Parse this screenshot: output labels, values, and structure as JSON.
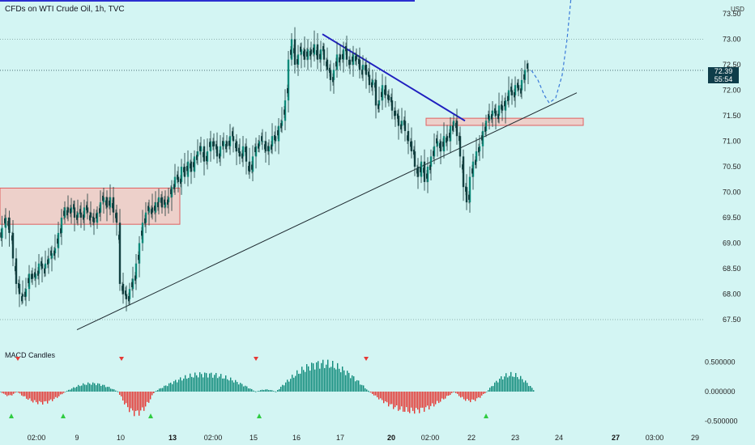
{
  "header": {
    "title": "CFDs on WTI Crude Oil, 1h, TVC",
    "currency": "USD"
  },
  "price_tag": {
    "price": "72.39",
    "countdown": "55:54"
  },
  "indicator": {
    "title": "MACD Candles"
  },
  "colors": {
    "bg": "#d3f5f3",
    "up": "#0e8a7a",
    "down": "#e53935",
    "trend": "#1f1fbf",
    "zone_fill": "#f1c9c2",
    "zone_border": "#e06060"
  },
  "chart_data": [
    {
      "type": "line",
      "title": "CFDs on WTI Crude Oil, 1h, TVC",
      "y_ticks": [
        "73.50",
        "73.00",
        "72.50",
        "72.00",
        "71.50",
        "71.00",
        "70.50",
        "70.00",
        "69.50",
        "69.00",
        "68.50",
        "68.00",
        "67.50"
      ],
      "x_ticks": [
        "02:00",
        "9",
        "10",
        "13",
        "02:00",
        "15",
        "16",
        "17",
        "20",
        "02:00",
        "22",
        "23",
        "24",
        "27",
        "03:00",
        "29"
      ],
      "ylim": [
        67.5,
        73.5
      ],
      "price_path": [
        [
          0,
          69.1
        ],
        [
          5,
          69.3
        ],
        [
          9,
          69.5
        ],
        [
          14,
          69.2
        ],
        [
          18,
          68.7
        ],
        [
          22,
          68.2
        ],
        [
          26,
          68.0
        ],
        [
          30,
          67.95
        ],
        [
          34,
          68.1
        ],
        [
          38,
          68.4
        ],
        [
          42,
          68.3
        ],
        [
          46,
          68.4
        ],
        [
          50,
          68.6
        ],
        [
          54,
          68.5
        ],
        [
          58,
          68.6
        ],
        [
          62,
          68.7
        ],
        [
          66,
          68.8
        ],
        [
          70,
          68.9
        ],
        [
          74,
          69.2
        ],
        [
          78,
          69.5
        ],
        [
          82,
          69.7
        ],
        [
          86,
          69.6
        ],
        [
          90,
          69.7
        ],
        [
          94,
          69.5
        ],
        [
          98,
          69.6
        ],
        [
          102,
          69.5
        ],
        [
          106,
          69.7
        ],
        [
          110,
          69.6
        ],
        [
          114,
          69.5
        ],
        [
          118,
          69.4
        ],
        [
          122,
          69.6
        ],
        [
          126,
          69.8
        ],
        [
          130,
          69.9
        ],
        [
          134,
          69.7
        ],
        [
          138,
          69.9
        ],
        [
          142,
          69.6
        ],
        [
          146,
          69.4
        ],
        [
          150,
          68.2
        ],
        [
          154,
          68.0
        ],
        [
          158,
          67.9
        ],
        [
          162,
          68.1
        ],
        [
          166,
          68.3
        ],
        [
          170,
          68.6
        ],
        [
          174,
          69.0
        ],
        [
          178,
          69.4
        ],
        [
          182,
          69.6
        ],
        [
          186,
          69.7
        ],
        [
          190,
          69.6
        ],
        [
          194,
          69.8
        ],
        [
          198,
          69.9
        ],
        [
          202,
          69.7
        ],
        [
          206,
          69.8
        ],
        [
          210,
          69.9
        ],
        [
          214,
          70.1
        ],
        [
          218,
          70.3
        ],
        [
          222,
          70.2
        ],
        [
          226,
          70.5
        ],
        [
          230,
          70.3
        ],
        [
          234,
          70.6
        ],
        [
          238,
          70.4
        ],
        [
          242,
          70.7
        ],
        [
          246,
          70.8
        ],
        [
          250,
          70.9
        ],
        [
          254,
          70.6
        ],
        [
          258,
          70.8
        ],
        [
          262,
          71.0
        ],
        [
          266,
          70.9
        ],
        [
          270,
          70.7
        ],
        [
          274,
          70.9
        ],
        [
          278,
          71.0
        ],
        [
          282,
          70.9
        ],
        [
          286,
          71.1
        ],
        [
          290,
          71.0
        ],
        [
          294,
          70.8
        ],
        [
          298,
          70.7
        ],
        [
          302,
          70.9
        ],
        [
          306,
          70.6
        ],
        [
          310,
          70.4
        ],
        [
          314,
          70.7
        ],
        [
          318,
          70.9
        ],
        [
          322,
          71.0
        ],
        [
          326,
          71.0
        ],
        [
          330,
          70.8
        ],
        [
          334,
          70.9
        ],
        [
          338,
          71.1
        ],
        [
          342,
          71.0
        ],
        [
          346,
          71.3
        ],
        [
          350,
          71.4
        ],
        [
          354,
          71.8
        ],
        [
          358,
          72.6
        ],
        [
          362,
          73.0
        ],
        [
          366,
          72.5
        ],
        [
          370,
          72.7
        ],
        [
          374,
          72.8
        ],
        [
          378,
          72.6
        ],
        [
          382,
          72.8
        ],
        [
          386,
          72.7
        ],
        [
          390,
          72.9
        ],
        [
          394,
          72.6
        ],
        [
          398,
          72.8
        ],
        [
          402,
          72.6
        ],
        [
          406,
          72.4
        ],
        [
          410,
          72.2
        ],
        [
          414,
          72.4
        ],
        [
          418,
          72.7
        ],
        [
          422,
          72.6
        ],
        [
          426,
          72.8
        ],
        [
          430,
          72.6
        ],
        [
          434,
          72.5
        ],
        [
          438,
          72.7
        ],
        [
          442,
          72.6
        ],
        [
          446,
          72.4
        ],
        [
          450,
          72.5
        ],
        [
          454,
          72.3
        ],
        [
          458,
          72.1
        ],
        [
          462,
          72.2
        ],
        [
          466,
          71.7
        ],
        [
          470,
          71.8
        ],
        [
          474,
          72.1
        ],
        [
          478,
          71.9
        ],
        [
          482,
          71.8
        ],
        [
          486,
          71.6
        ],
        [
          490,
          71.5
        ],
        [
          494,
          71.3
        ],
        [
          498,
          71.4
        ],
        [
          502,
          71.2
        ],
        [
          506,
          71.0
        ],
        [
          510,
          70.8
        ],
        [
          514,
          70.5
        ],
        [
          518,
          70.3
        ],
        [
          522,
          70.6
        ],
        [
          526,
          70.2
        ],
        [
          530,
          70.5
        ],
        [
          534,
          70.7
        ],
        [
          538,
          70.9
        ],
        [
          542,
          71.0
        ],
        [
          546,
          70.8
        ],
        [
          550,
          71.1
        ],
        [
          554,
          71.0
        ],
        [
          558,
          71.3
        ],
        [
          562,
          71.4
        ],
        [
          566,
          71.1
        ],
        [
          570,
          70.7
        ],
        [
          574,
          70.1
        ],
        [
          578,
          69.8
        ],
        [
          582,
          70.3
        ],
        [
          586,
          70.6
        ],
        [
          590,
          70.8
        ],
        [
          594,
          70.9
        ],
        [
          598,
          71.2
        ],
        [
          602,
          71.4
        ],
        [
          606,
          71.5
        ],
        [
          610,
          71.6
        ],
        [
          614,
          71.5
        ],
        [
          618,
          71.7
        ],
        [
          622,
          71.6
        ],
        [
          626,
          71.8
        ],
        [
          630,
          72.0
        ],
        [
          634,
          71.9
        ],
        [
          638,
          72.1
        ],
        [
          642,
          72.0
        ],
        [
          646,
          72.2
        ],
        [
          650,
          72.4
        ],
        [
          654,
          72.39
        ]
      ],
      "projection_path": [
        [
          656,
          72.39
        ],
        [
          664,
          72.2
        ],
        [
          672,
          71.9
        ],
        [
          678,
          71.75
        ],
        [
          686,
          71.85
        ],
        [
          694,
          72.3
        ],
        [
          700,
          73.0
        ],
        [
          706,
          74.0
        ]
      ],
      "support_line": [
        [
          95,
          67.3
        ],
        [
          712,
          71.95
        ]
      ],
      "resistance_line": [
        [
          398,
          73.1
        ],
        [
          574,
          71.4
        ]
      ],
      "zones": [
        {
          "x0": 0,
          "x1": 222,
          "y0": 69.37,
          "y1": 70.08
        },
        {
          "x0": 526,
          "x1": 720,
          "y0": 71.31,
          "y1": 71.45
        }
      ]
    },
    {
      "type": "bar",
      "title": "MACD Candles",
      "y_ticks": [
        "0.500000",
        "0.000000",
        "-0.500000"
      ],
      "ylim": [
        -0.5,
        0.6
      ],
      "values_segments": [
        {
          "x0": 0,
          "x1": 20,
          "peak": -0.08
        },
        {
          "x0": 20,
          "x1": 80,
          "peak": -0.22
        },
        {
          "x0": 80,
          "x1": 145,
          "peak": 0.16
        },
        {
          "x0": 145,
          "x1": 190,
          "peak": -0.42
        },
        {
          "x0": 190,
          "x1": 315,
          "peak": 0.34
        },
        {
          "x0": 315,
          "x1": 340,
          "peak": 0.04
        },
        {
          "x0": 340,
          "x1": 455,
          "peak": 0.55
        },
        {
          "x0": 455,
          "x1": 560,
          "peak": -0.38
        },
        {
          "x0": 560,
          "x1": 600,
          "peak": -0.18
        },
        {
          "x0": 600,
          "x1": 660,
          "peak": 0.33
        }
      ],
      "signals_down": [
        22,
        150,
        316,
        452
      ],
      "signals_up": [
        14,
        78,
        186,
        320,
        600
      ]
    }
  ]
}
